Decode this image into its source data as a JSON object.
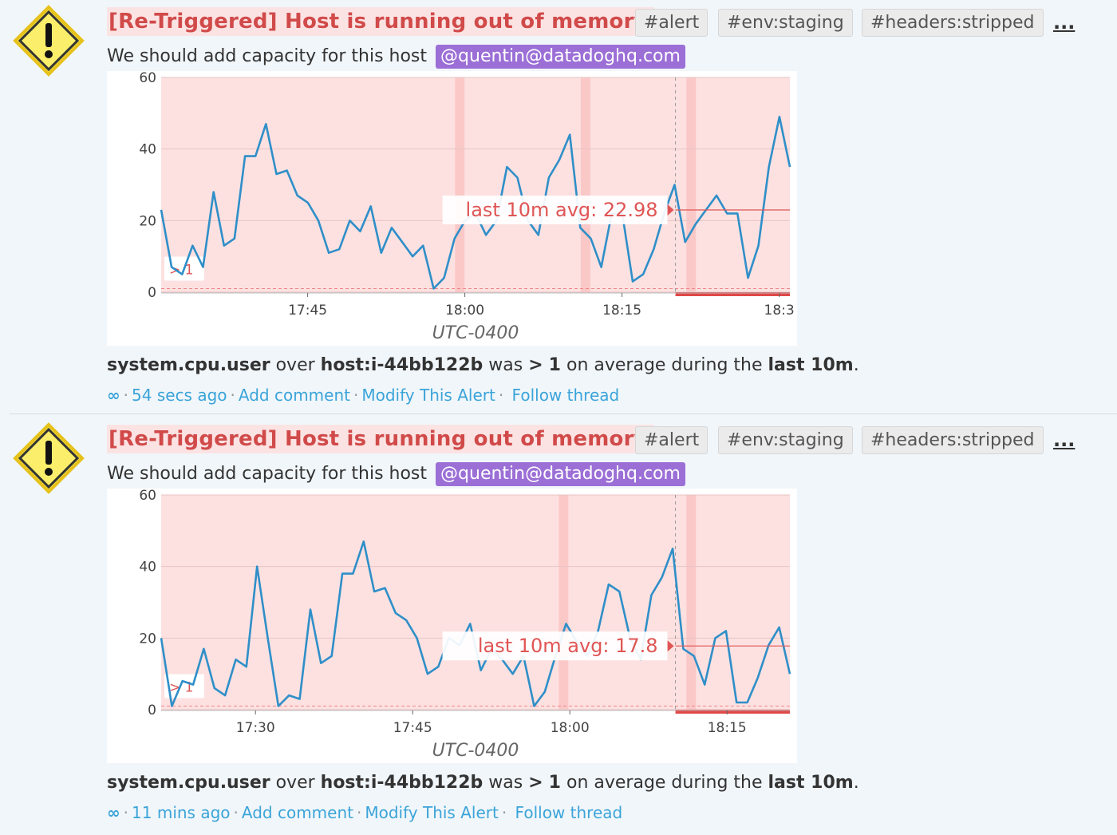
{
  "events": [
    {
      "title": "[Re-Triggered] Host is running out of memory",
      "tags": [
        "#alert",
        "#env:staging",
        "#headers:stripped"
      ],
      "more": "...",
      "message": "We should add capacity for this host",
      "mention": "@quentin@datadoghq.com",
      "summary": {
        "metric": "system.cpu.user",
        "over": "over",
        "host": "host:i-44bb122b",
        "was": "was",
        "op": ">",
        "threshold": "1",
        "on_avg": "on average during the",
        "window": "last 10m",
        "end": "."
      },
      "actions": {
        "link_icon": "∞",
        "time": "54 secs ago",
        "comment": "Add comment",
        "modify": "Modify This Alert",
        "follow": "Follow thread"
      },
      "chart_data": {
        "type": "line",
        "y_ticks": [
          "0",
          "20",
          "40",
          "60"
        ],
        "ylim": [
          0,
          60
        ],
        "x_ticks": [
          "17:45",
          "18:00",
          "18:15",
          "18:3"
        ],
        "x_tick_pos": [
          0.233,
          0.483,
          0.733,
          0.983
        ],
        "xlabel": "UTC-0400",
        "threshold_label": "> 1",
        "avg_label": "last 10m avg: 22.98",
        "avg_value": 22.98,
        "alert_window_start": 0.818,
        "highlight_bands": [
          0.475,
          0.675,
          0.843
        ],
        "values": [
          23,
          7,
          5,
          13,
          7,
          28,
          13,
          15,
          38,
          38,
          47,
          33,
          34,
          27,
          25,
          20,
          11,
          12,
          20,
          17,
          24,
          11,
          18,
          14,
          10,
          13,
          1,
          4,
          15,
          20,
          22,
          16,
          20,
          35,
          32,
          20,
          16,
          32,
          37,
          44,
          18,
          15,
          7,
          22,
          22,
          3,
          5,
          12,
          22,
          30,
          14,
          19,
          23,
          27,
          22,
          22,
          4,
          13,
          35,
          49,
          35
        ]
      }
    },
    {
      "title": "[Re-Triggered] Host is running out of memory",
      "tags": [
        "#alert",
        "#env:staging",
        "#headers:stripped"
      ],
      "more": "...",
      "message": "We should add capacity for this host",
      "mention": "@quentin@datadoghq.com",
      "summary": {
        "metric": "system.cpu.user",
        "over": "over",
        "host": "host:i-44bb122b",
        "was": "was",
        "op": ">",
        "threshold": "1",
        "on_avg": "on average during the",
        "window": "last 10m",
        "end": "."
      },
      "actions": {
        "link_icon": "∞",
        "time": "11 mins ago",
        "comment": "Add comment",
        "modify": "Modify This Alert",
        "follow": "Follow thread"
      },
      "chart_data": {
        "type": "line",
        "y_ticks": [
          "0",
          "20",
          "40",
          "60"
        ],
        "ylim": [
          0,
          60
        ],
        "x_ticks": [
          "17:30",
          "17:45",
          "18:00",
          "18:15"
        ],
        "x_tick_pos": [
          0.15,
          0.4,
          0.65,
          0.9
        ],
        "xlabel": "UTC-0400",
        "threshold_label": "> 1",
        "avg_label": "last 10m avg: 17.8",
        "avg_value": 17.8,
        "alert_window_start": 0.818,
        "highlight_bands": [
          0.64,
          0.843
        ],
        "values": [
          20,
          1,
          8,
          7,
          17,
          6,
          4,
          14,
          12,
          40,
          20,
          1,
          4,
          3,
          28,
          13,
          15,
          38,
          38,
          47,
          33,
          34,
          27,
          25,
          20,
          10,
          12,
          20,
          18,
          24,
          11,
          17,
          14,
          10,
          15,
          1,
          5,
          15,
          24,
          19,
          15,
          22,
          35,
          33,
          20,
          14,
          32,
          37,
          45,
          17,
          15,
          7,
          20,
          22,
          2,
          2,
          9,
          18,
          23,
          10
        ]
      }
    }
  ]
}
